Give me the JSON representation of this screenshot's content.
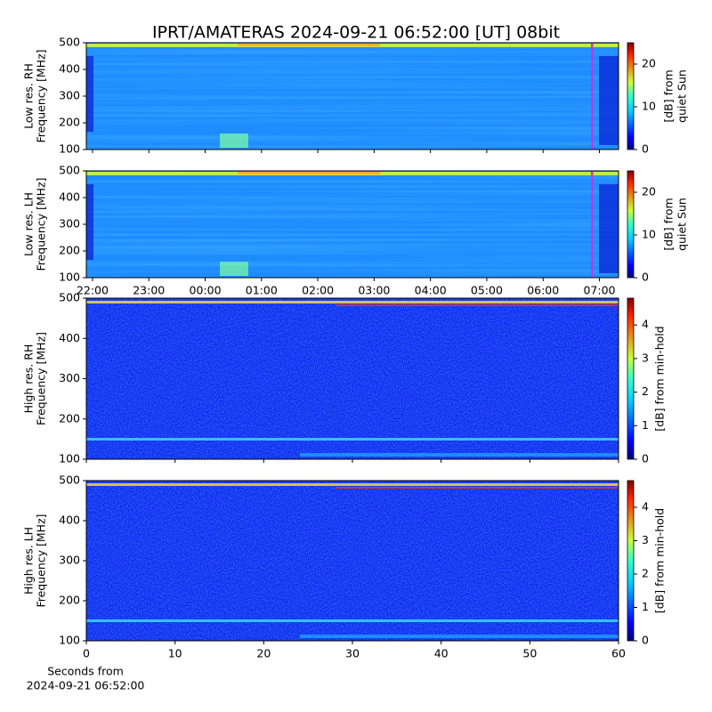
{
  "title": "IPRT/AMATERAS 2024-09-21 06:52:00 [UT]   08bit",
  "chart_data": [
    {
      "type": "heatmap",
      "ylabel": [
        "Low res. RH",
        "Frequency [MHz]"
      ],
      "xlim": [
        21.89,
        31.34
      ],
      "ylim": [
        100,
        500
      ],
      "yticks": [
        100,
        200,
        300,
        400,
        500
      ],
      "colorbar_label": [
        "[dB] from",
        "quiet Sun"
      ],
      "clim": [
        0,
        25
      ],
      "cticks": [
        0,
        10,
        20
      ],
      "now_marker": 30.87,
      "marker_color": "#cc33dd"
    },
    {
      "type": "heatmap",
      "ylabel": [
        "Low res. LH",
        "Frequency [MHz]"
      ],
      "xlim": [
        21.89,
        31.34
      ],
      "ylim": [
        100,
        500
      ],
      "yticks": [
        100,
        200,
        300,
        400,
        500
      ],
      "xticks": [
        {
          "value": 22,
          "label": "22:00"
        },
        {
          "value": 23,
          "label": "23:00"
        },
        {
          "value": 24,
          "label": "00:00"
        },
        {
          "value": 25,
          "label": "01:00"
        },
        {
          "value": 26,
          "label": "02:00"
        },
        {
          "value": 27,
          "label": "03:00"
        },
        {
          "value": 28,
          "label": "04:00"
        },
        {
          "value": 29,
          "label": "05:00"
        },
        {
          "value": 30,
          "label": "06:00"
        },
        {
          "value": 31,
          "label": "07:00"
        }
      ],
      "colorbar_label": [
        "[dB] from",
        "quiet Sun"
      ],
      "clim": [
        0,
        25
      ],
      "cticks": [
        0,
        10,
        20
      ],
      "now_marker": 30.87,
      "marker_color": "#cc33dd"
    },
    {
      "type": "heatmap",
      "ylabel": [
        "High res. RH",
        "Frequency [MHz]"
      ],
      "xlim": [
        0,
        60
      ],
      "ylim": [
        100,
        500
      ],
      "yticks": [
        100,
        200,
        300,
        400,
        500
      ],
      "colorbar_label": [
        "[dB] from min-hold"
      ],
      "clim": [
        0,
        4.8
      ],
      "cticks": [
        0,
        1,
        2,
        3,
        4
      ]
    },
    {
      "type": "heatmap",
      "ylabel": [
        "High res. LH",
        "Frequency [MHz]"
      ],
      "xlim": [
        0,
        60
      ],
      "ylim": [
        100,
        500
      ],
      "yticks": [
        100,
        200,
        300,
        400,
        500
      ],
      "xticks": [
        0,
        10,
        20,
        30,
        40,
        50,
        60
      ],
      "xlabel": [
        "Seconds from",
        "2024-09-21 06:52:00"
      ],
      "colorbar_label": [
        "[dB] from min-hold"
      ],
      "clim": [
        0,
        4.8
      ],
      "cticks": [
        0,
        1,
        2,
        3,
        4
      ]
    }
  ]
}
